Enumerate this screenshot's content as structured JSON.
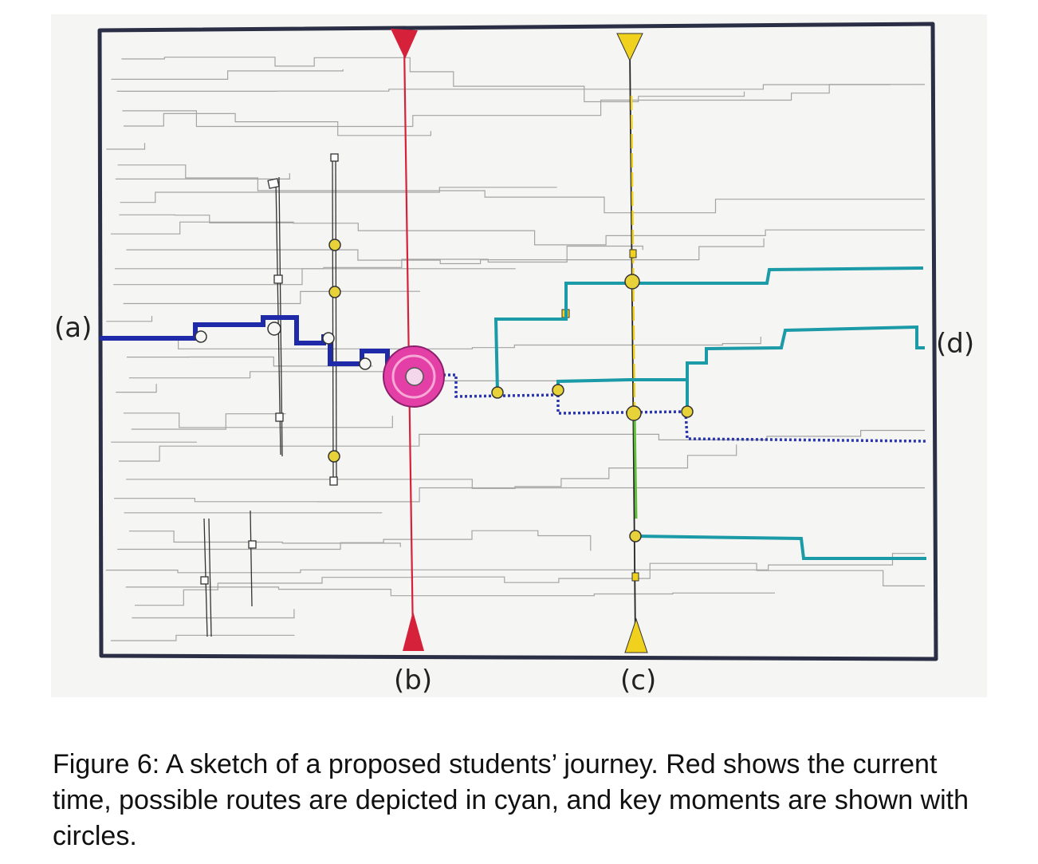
{
  "labels": {
    "a": "(a)",
    "b": "(b)",
    "c": "(c)",
    "d": "(d)"
  },
  "caption": "Figure 6:  A sketch of a proposed students’ journey.  Red shows the current time, possible routes are depicted in cyan, and key moments are shown with circles.",
  "colors": {
    "frame": "#2b2f45",
    "current_time": "#d6213a",
    "future_marker": "#f0d21e",
    "past_route": "#1f2aa8",
    "possible_routes": "#1b9aa8",
    "current_position": "#e43fa7",
    "key_moment": "#e8d23a",
    "background_grid": "#8a8a8a"
  }
}
